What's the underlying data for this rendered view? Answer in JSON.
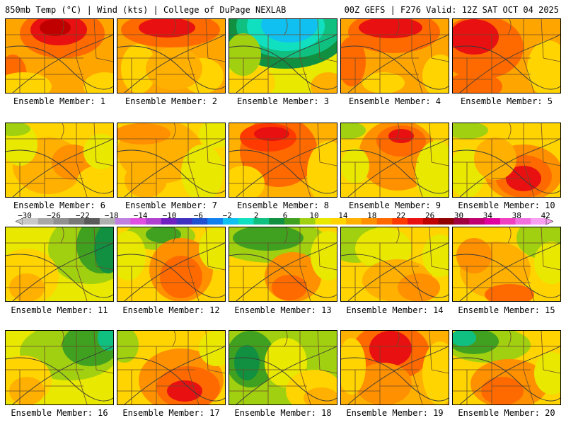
{
  "header": {
    "left": "850mb Temp (°C) | Wind (kts) | College of DuPage NEXLAB",
    "right": "00Z GEFS | F276 Valid: 12Z SAT OCT 04 2025"
  },
  "legend": {
    "ticks": [
      "−30",
      "−26",
      "−22",
      "−18",
      "−14",
      "−10",
      "−6",
      "−2",
      "2",
      "6",
      "10",
      "14",
      "18",
      "22",
      "26",
      "30",
      "34",
      "38",
      "42"
    ],
    "colors": [
      "#c8c8c8",
      "#a8a8a8",
      "#909090",
      "#787878",
      "#5a5a5a",
      "#b0b0b0",
      "#c080e0",
      "#e050e0",
      "#b040d0",
      "#7020c0",
      "#4030c0",
      "#2050d0",
      "#1080f0",
      "#10c0f0",
      "#10e0c0",
      "#10c080",
      "#109040",
      "#40a020",
      "#a0d010",
      "#e8e800",
      "#ffd400",
      "#ffb000",
      "#ff9000",
      "#ff6a00",
      "#ff3a00",
      "#e81010",
      "#c00000",
      "#900000",
      "#a00040",
      "#c00070",
      "#e000a0",
      "#f040c0",
      "#f070e0",
      "#f8a0f0"
    ]
  },
  "panels": [
    {
      "label": "Ensemble Member: 1",
      "base": "#ffa500",
      "blobs": [
        [
          "#ff6a00",
          80,
          20,
          60,
          35
        ],
        [
          "#e81010",
          75,
          15,
          40,
          22
        ],
        [
          "#c00000",
          70,
          12,
          22,
          12
        ],
        [
          "#ff6a00",
          10,
          80,
          20,
          30
        ],
        [
          "#ffd400",
          140,
          95,
          30,
          20
        ],
        [
          "#ffd400",
          25,
          95,
          40,
          20
        ]
      ]
    },
    {
      "label": "Ensemble Member: 2",
      "base": "#ffa500",
      "blobs": [
        [
          "#ff6a00",
          75,
          15,
          70,
          25
        ],
        [
          "#e81010",
          70,
          12,
          40,
          14
        ],
        [
          "#ffd400",
          30,
          70,
          25,
          35
        ],
        [
          "#ffd400",
          120,
          80,
          30,
          25
        ],
        [
          "#ffb000",
          80,
          70,
          40,
          30
        ]
      ]
    },
    {
      "label": "Ensemble Member: 3",
      "base": "#e8e800",
      "blobs": [
        [
          "#109040",
          80,
          15,
          90,
          55
        ],
        [
          "#10c080",
          85,
          10,
          75,
          45
        ],
        [
          "#10e0c0",
          80,
          10,
          55,
          35
        ],
        [
          "#10c0f0",
          85,
          8,
          40,
          25
        ],
        [
          "#ffd400",
          30,
          90,
          35,
          25
        ],
        [
          "#a0d010",
          20,
          50,
          25,
          30
        ],
        [
          "#ffb000",
          140,
          95,
          25,
          20
        ]
      ]
    },
    {
      "label": "Ensemble Member: 4",
      "base": "#ffa500",
      "blobs": [
        [
          "#ff6a00",
          75,
          18,
          65,
          30
        ],
        [
          "#e81010",
          70,
          12,
          45,
          15
        ],
        [
          "#ff6a00",
          15,
          60,
          20,
          35
        ],
        [
          "#ffd400",
          140,
          80,
          25,
          30
        ],
        [
          "#ffd400",
          60,
          90,
          30,
          15
        ]
      ]
    },
    {
      "label": "Ensemble Member: 5",
      "base": "#ffa500",
      "blobs": [
        [
          "#ff6a00",
          40,
          40,
          60,
          45
        ],
        [
          "#e81010",
          30,
          25,
          35,
          25
        ],
        [
          "#ff6a00",
          30,
          95,
          40,
          20
        ],
        [
          "#ffd400",
          135,
          70,
          30,
          40
        ]
      ]
    },
    {
      "label": "Ensemble Member: 6",
      "base": "#ffd400",
      "blobs": [
        [
          "#ffb000",
          60,
          60,
          50,
          40
        ],
        [
          "#ff9000",
          95,
          55,
          30,
          25
        ],
        [
          "#e8e800",
          20,
          30,
          25,
          30
        ],
        [
          "#ffd400",
          130,
          85,
          30,
          25
        ],
        [
          "#a0d010",
          10,
          8,
          25,
          10
        ],
        [
          "#e8e800",
          135,
          40,
          25,
          25
        ]
      ]
    },
    {
      "label": "Ensemble Member: 7",
      "base": "#ffd400",
      "blobs": [
        [
          "#ffb000",
          60,
          40,
          60,
          45
        ],
        [
          "#ff9000",
          35,
          15,
          40,
          15
        ],
        [
          "#ffb000",
          40,
          80,
          30,
          25
        ],
        [
          "#e8e800",
          120,
          70,
          30,
          40
        ],
        [
          "#e8e800",
          140,
          15,
          25,
          20
        ]
      ]
    },
    {
      "label": "Ensemble Member: 8",
      "base": "#ffb000",
      "blobs": [
        [
          "#ff6a00",
          70,
          40,
          55,
          50
        ],
        [
          "#ff3a00",
          55,
          20,
          40,
          20
        ],
        [
          "#e81010",
          60,
          15,
          25,
          10
        ],
        [
          "#ffd400",
          140,
          70,
          30,
          45
        ],
        [
          "#ffd400",
          20,
          85,
          30,
          25
        ]
      ]
    },
    {
      "label": "Ensemble Member: 9",
      "base": "#ffd400",
      "blobs": [
        [
          "#ff9000",
          80,
          45,
          55,
          50
        ],
        [
          "#ff6a00",
          85,
          25,
          35,
          22
        ],
        [
          "#e81010",
          85,
          18,
          18,
          10
        ],
        [
          "#e8e800",
          135,
          70,
          30,
          45
        ],
        [
          "#a0d010",
          10,
          10,
          25,
          12
        ],
        [
          "#e8e800",
          20,
          60,
          20,
          25
        ]
      ]
    },
    {
      "label": "Ensemble Member: 10",
      "base": "#ffd400",
      "blobs": [
        [
          "#ff9000",
          100,
          70,
          55,
          40
        ],
        [
          "#ff6a00",
          100,
          75,
          40,
          30
        ],
        [
          "#e81010",
          100,
          78,
          25,
          18
        ],
        [
          "#a0d010",
          20,
          10,
          30,
          12
        ],
        [
          "#e8e800",
          20,
          70,
          25,
          35
        ],
        [
          "#ffb000",
          60,
          50,
          30,
          30
        ]
      ]
    },
    {
      "label": "Ensemble Member: 11",
      "base": "#e8e800",
      "blobs": [
        [
          "#a0d010",
          120,
          30,
          60,
          50
        ],
        [
          "#40a020",
          135,
          25,
          35,
          40
        ],
        [
          "#109040",
          145,
          30,
          20,
          35
        ],
        [
          "#ffd400",
          30,
          70,
          45,
          40
        ],
        [
          "#ffb000",
          30,
          85,
          25,
          20
        ]
      ]
    },
    {
      "label": "Ensemble Member: 12",
      "base": "#ffd400",
      "blobs": [
        [
          "#a0d010",
          60,
          12,
          50,
          20
        ],
        [
          "#40a020",
          65,
          10,
          25,
          12
        ],
        [
          "#ff9000",
          90,
          60,
          45,
          45
        ],
        [
          "#ff6a00",
          90,
          70,
          30,
          30
        ],
        [
          "#e8e800",
          15,
          40,
          25,
          35
        ],
        [
          "#e8e800",
          140,
          30,
          25,
          30
        ]
      ]
    },
    {
      "label": "Ensemble Member: 13",
      "base": "#ffd400",
      "blobs": [
        [
          "#a0d010",
          60,
          20,
          80,
          30
        ],
        [
          "#40a020",
          55,
          15,
          50,
          18
        ],
        [
          "#ff9000",
          90,
          70,
          40,
          35
        ],
        [
          "#ff6a00",
          85,
          85,
          25,
          18
        ],
        [
          "#e8e800",
          140,
          40,
          25,
          35
        ]
      ]
    },
    {
      "label": "Ensemble Member: 14",
      "base": "#ffd400",
      "blobs": [
        [
          "#a0d010",
          20,
          20,
          40,
          30
        ],
        [
          "#e8e800",
          60,
          30,
          40,
          30
        ],
        [
          "#ffb000",
          80,
          75,
          50,
          30
        ],
        [
          "#ff9000",
          110,
          85,
          30,
          20
        ],
        [
          "#e8e800",
          140,
          40,
          25,
          30
        ]
      ]
    },
    {
      "label": "Ensemble Member: 15",
      "base": "#ffd400",
      "blobs": [
        [
          "#a0d010",
          130,
          15,
          40,
          30
        ],
        [
          "#e8e800",
          140,
          50,
          25,
          30
        ],
        [
          "#ffb000",
          60,
          60,
          50,
          40
        ],
        [
          "#ff6a00",
          80,
          95,
          35,
          15
        ],
        [
          "#ff9000",
          30,
          40,
          25,
          25
        ]
      ]
    },
    {
      "label": "Ensemble Member: 16",
      "base": "#e8e800",
      "blobs": [
        [
          "#a0d010",
          90,
          30,
          70,
          40
        ],
        [
          "#40a020",
          120,
          20,
          40,
          30
        ],
        [
          "#10c080",
          145,
          10,
          15,
          18
        ],
        [
          "#ffd400",
          25,
          70,
          40,
          35
        ],
        [
          "#ffb000",
          30,
          85,
          25,
          20
        ]
      ]
    },
    {
      "label": "Ensemble Member: 17",
      "base": "#ffd400",
      "blobs": [
        [
          "#ff9000",
          90,
          70,
          60,
          45
        ],
        [
          "#ff6a00",
          100,
          80,
          45,
          30
        ],
        [
          "#e81010",
          95,
          85,
          25,
          15
        ],
        [
          "#a0d010",
          10,
          20,
          20,
          25
        ],
        [
          "#e8e800",
          140,
          25,
          25,
          25
        ]
      ]
    },
    {
      "label": "Ensemble Member: 18",
      "base": "#a0d010",
      "blobs": [
        [
          "#40a020",
          30,
          40,
          35,
          40
        ],
        [
          "#109040",
          25,
          45,
          18,
          25
        ],
        [
          "#e8e800",
          80,
          45,
          30,
          35
        ],
        [
          "#ffd400",
          120,
          85,
          40,
          30
        ],
        [
          "#ffb000",
          130,
          95,
          25,
          15
        ]
      ]
    },
    {
      "label": "Ensemble Member: 19",
      "base": "#ffb000",
      "blobs": [
        [
          "#ff6a00",
          70,
          30,
          55,
          40
        ],
        [
          "#e81010",
          70,
          25,
          30,
          25
        ],
        [
          "#ff9000",
          60,
          75,
          40,
          30
        ],
        [
          "#ffd400",
          140,
          60,
          25,
          45
        ],
        [
          "#ffd400",
          15,
          50,
          20,
          40
        ]
      ]
    },
    {
      "label": "Ensemble Member: 20",
      "base": "#ffd400",
      "blobs": [
        [
          "#a0d010",
          50,
          20,
          60,
          25
        ],
        [
          "#40a020",
          30,
          15,
          35,
          18
        ],
        [
          "#10c080",
          15,
          10,
          18,
          12
        ],
        [
          "#ff9000",
          80,
          75,
          55,
          35
        ],
        [
          "#ff6a00",
          70,
          85,
          30,
          20
        ],
        [
          "#e8e800",
          140,
          60,
          25,
          30
        ]
      ]
    }
  ]
}
